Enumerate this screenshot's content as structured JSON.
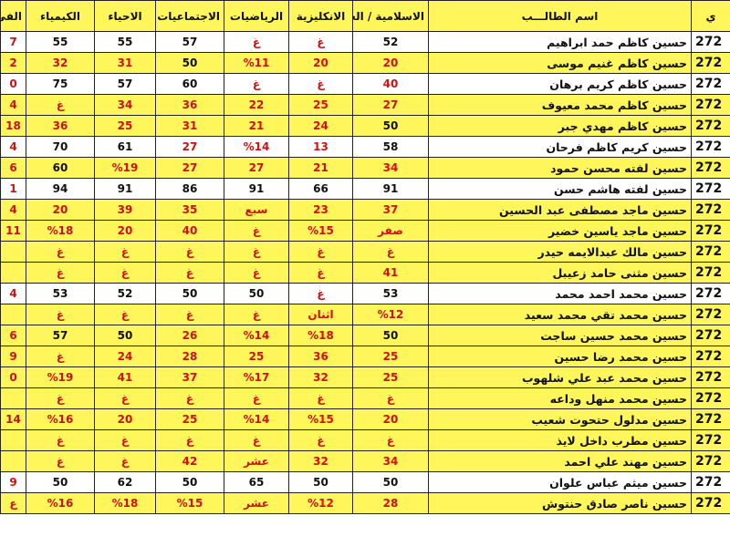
{
  "table": {
    "headers": [
      "ي",
      "اسم الطالـــب",
      "الاسلامية / العربية",
      "الانكليزية",
      "الرياضيات",
      "الاجتماعيات",
      "الاحياء",
      "الكيمياء",
      "الفي"
    ],
    "rows": [
      [
        "272",
        "حسين كاظم حمد ابراهيم",
        "52",
        "غ",
        "غ",
        "57",
        "55",
        "55",
        "7"
      ],
      [
        "272",
        "حسين كاظم غنيم موسى",
        "20",
        "20",
        "%11",
        "50",
        "31",
        "32",
        "2"
      ],
      [
        "272",
        "حسين كاظم كريم برهان",
        "40",
        "غ",
        "غ",
        "60",
        "57",
        "75",
        "0"
      ],
      [
        "272",
        "حسين كاظم محمد معيوف",
        "27",
        "25",
        "22",
        "36",
        "34",
        "غ",
        "4"
      ],
      [
        "272",
        "حسين كاظم مهدي جبر",
        "50",
        "24",
        "21",
        "31",
        "25",
        "36",
        "18"
      ],
      [
        "272",
        "حسين كريم كاظم فرحان",
        "58",
        "13",
        "%14",
        "27",
        "61",
        "70",
        "4"
      ],
      [
        "272",
        "حسين لفته محسن حمود",
        "34",
        "21",
        "27",
        "27",
        "%19",
        "60",
        "6"
      ],
      [
        "272",
        "حسين لفته هاشم حسن",
        "91",
        "66",
        "91",
        "86",
        "91",
        "94",
        "1"
      ],
      [
        "272",
        "حسين ماجد مصطفى عبد الحسين",
        "37",
        "23",
        "سبع",
        "35",
        "39",
        "20",
        "4"
      ],
      [
        "272",
        "حسين ماجد ياسين خضير",
        "صفر",
        "%15",
        "غ",
        "40",
        "20",
        "%18",
        "11"
      ],
      [
        "272",
        "حسين مالك عبدالايمه حيدر",
        "غ",
        "غ",
        "غ",
        "غ",
        "غ",
        "غ",
        null
      ],
      [
        "272",
        "حسين مثنى حامد زعيبل",
        "41",
        "غ",
        "غ",
        "غ",
        "غ",
        "غ",
        null
      ],
      [
        "272",
        "حسين محمد احمد محمد",
        "53",
        "غ",
        "50",
        "50",
        "52",
        "53",
        "4"
      ],
      [
        "272",
        "حسين محمد تقي محمد سعيد",
        "%12",
        "اثنان",
        "غ",
        "غ",
        "غ",
        "غ",
        null
      ],
      [
        "272",
        "حسين محمد حسين ساجت",
        "50",
        "%18",
        "%14",
        "26",
        "50",
        "57",
        "6"
      ],
      [
        "272",
        "حسين محمد رضا حسين",
        "25",
        "36",
        "25",
        "28",
        "24",
        "غ",
        "9"
      ],
      [
        "272",
        "حسين محمد عبد علي شلهوب",
        "25",
        "32",
        "%17",
        "37",
        "41",
        "%19",
        "0"
      ],
      [
        "272",
        "حسين محمد منهل وداعه",
        "غ",
        "غ",
        "غ",
        "غ",
        "غ",
        "غ",
        null
      ],
      [
        "272",
        "حسين مدلول حتحوت شعيب",
        "20",
        "%15",
        "%14",
        "25",
        "20",
        "%16",
        "14"
      ],
      [
        "272",
        "حسين مطرب داخل لايذ",
        "غ",
        "غ",
        "غ",
        "غ",
        "غ",
        "غ",
        null
      ],
      [
        "272",
        "حسين مهند علي احمد",
        "34",
        "32",
        "عشر",
        "42",
        "غ",
        "غ",
        null
      ],
      [
        "272",
        "حسين ميثم عباس علوان",
        "50",
        "50",
        "65",
        "50",
        "62",
        "50",
        "9"
      ],
      [
        "272",
        "حسين ناصر صادق حنتوش",
        "28",
        "%12",
        "عشر",
        "%15",
        "%18",
        "%16",
        "ع"
      ]
    ]
  }
}
